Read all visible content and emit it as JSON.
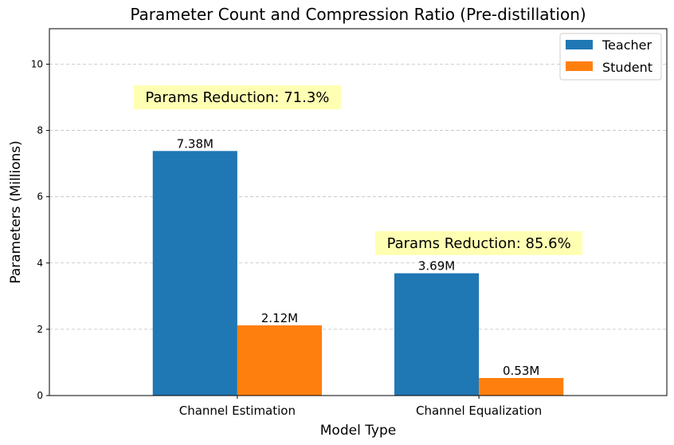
{
  "chart_data": {
    "type": "bar",
    "title": "Parameter Count and Compression Ratio (Pre-distillation)",
    "xlabel": "Model Type",
    "ylabel": "Parameters (Millions)",
    "categories": [
      "Channel Estimation",
      "Channel Equalization"
    ],
    "series": [
      {
        "name": "Teacher",
        "color": "#1f77b4",
        "values": [
          7.38,
          3.69
        ],
        "labels": [
          "7.38M",
          "3.69M"
        ]
      },
      {
        "name": "Student",
        "color": "#ff7f0e",
        "values": [
          2.12,
          0.53
        ],
        "labels": [
          "2.12M",
          "0.53M"
        ]
      }
    ],
    "ylim": [
      0,
      11.07
    ],
    "yticks": [
      0,
      2,
      4,
      6,
      8,
      10
    ],
    "grid": "y-dashed",
    "legend_position": "top-right",
    "annotations": [
      {
        "text": "Params Reduction: 71.3%",
        "category_index": 0,
        "y": 9.0
      },
      {
        "text": "Params Reduction: 85.6%",
        "category_index": 1,
        "y": 4.6
      }
    ],
    "annotation_box_color": "#ffffb3"
  }
}
